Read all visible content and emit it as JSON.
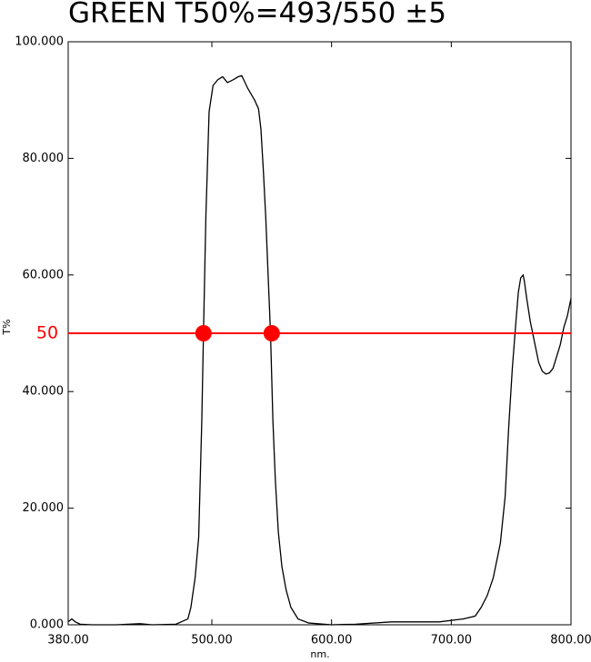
{
  "chart_data": {
    "type": "line",
    "title": "GREEN  T50%=493/550 ±5",
    "x_label": "nm.",
    "y_label": "T%",
    "x": [
      380,
      383,
      386,
      390,
      400,
      420,
      440,
      450,
      470,
      480,
      482.5,
      486,
      489,
      491.6,
      493,
      495,
      497.7,
      501,
      505,
      509,
      513,
      518,
      522,
      525,
      530,
      535.7,
      539,
      541,
      543,
      545,
      547,
      549,
      551,
      553,
      555.5,
      558.5,
      562,
      566,
      572,
      581,
      600,
      620,
      650,
      690,
      710,
      720,
      725,
      730,
      735,
      741,
      745,
      748,
      751,
      754,
      756,
      758,
      760,
      761,
      763,
      766,
      770,
      773,
      776,
      779,
      782,
      785,
      788,
      791,
      794,
      797,
      800
    ],
    "series": [
      {
        "name": "T%",
        "color": "#000000",
        "values": [
          0.5,
          1,
          0.5,
          0.1,
          0,
          0,
          0.2,
          0,
          0.1,
          1,
          3,
          8,
          15,
          35,
          50,
          70,
          88,
          92.5,
          93.5,
          94,
          93,
          93.5,
          94,
          94.2,
          92,
          90,
          88.5,
          85,
          78,
          70,
          60,
          50,
          35,
          25,
          16,
          10,
          6,
          3,
          1,
          0.3,
          0,
          0.1,
          0.5,
          0.5,
          1,
          1.5,
          3,
          5,
          8,
          14,
          22,
          34,
          44,
          52,
          57,
          59.5,
          60,
          59,
          56,
          52,
          48,
          45,
          43.5,
          43,
          43.2,
          44,
          46,
          48,
          51,
          53,
          56
        ]
      }
    ],
    "xlim": [
      380,
      800
    ],
    "ylim": [
      0,
      100
    ],
    "xticks": [
      {
        "value": 380,
        "label": "380.00"
      },
      {
        "value": 500,
        "label": "500.00"
      },
      {
        "value": 600,
        "label": "600.00"
      },
      {
        "value": 700,
        "label": "700.00"
      },
      {
        "value": 800,
        "label": "800.00"
      }
    ],
    "yticks": [
      {
        "value": 0,
        "label": "0.000"
      },
      {
        "value": 20,
        "label": "20.000"
      },
      {
        "value": 40,
        "label": "40.000"
      },
      {
        "value": 60,
        "label": "60.000"
      },
      {
        "value": 80,
        "label": "80.000"
      },
      {
        "value": 100,
        "label": "100.000"
      }
    ],
    "reference_line": {
      "value": 50,
      "color": "#ff0000"
    },
    "markers": {
      "x": [
        493,
        550
      ],
      "values": [
        50,
        50
      ],
      "color": "#ff0000"
    }
  }
}
